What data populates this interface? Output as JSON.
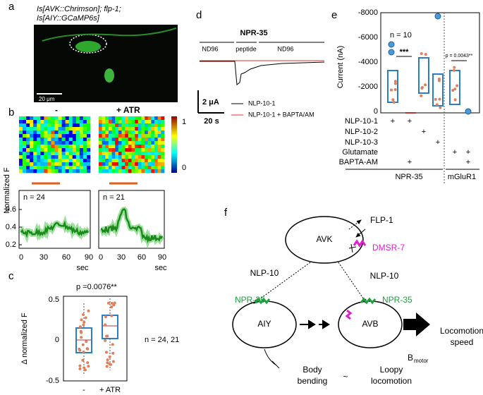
{
  "panel_a": {
    "label": "a",
    "genotype_1": "Is[AVK::Chrimson]; flp-1;",
    "genotype_2": "Is[AIY::GCaMP6s]",
    "scale_bar": "20 μm"
  },
  "panel_b": {
    "label": "b",
    "condition_1": "-",
    "condition_2": "+ ATR",
    "colorbar_ticks": [
      "1",
      "0"
    ],
    "y_label": "Normalized F",
    "n_1": "n = 24",
    "n_2": "n = 21",
    "yticks": [
      "0.6",
      "0.4",
      "0.2"
    ],
    "xticks": [
      "0",
      "30",
      "60",
      "90"
    ],
    "x_label": "sec"
  },
  "panel_c": {
    "label": "c",
    "p_value": "p =0.0076**",
    "yticks": [
      "0.5",
      "0",
      "-0.5"
    ],
    "y_label": "Δ normalized F",
    "categories": [
      "-",
      "+ ATR"
    ],
    "n": "n = 24, 21"
  },
  "panel_d": {
    "label": "d",
    "title": "NPR-35",
    "bath": [
      "ND96",
      "peptide",
      "ND96"
    ],
    "scale_y": "2 μA",
    "scale_x": "20 s",
    "legend": [
      "NLP-10-1",
      "NLP-10-1 + BAPTA/AM"
    ]
  },
  "panel_e": {
    "label": "e",
    "y_label": "Current (nA)",
    "yticks": [
      "-8000",
      "-6000",
      "-4000",
      "-2000",
      "0"
    ],
    "n": "n = 10",
    "stars": "***",
    "p_value": "p = 0.0043**",
    "rows": [
      "NLP-10-1",
      "NLP-10-2",
      "NLP-10-3",
      "Glutamate",
      "BAPTA-AM"
    ],
    "plus": "+",
    "groups": [
      "NPR-35",
      "mGluR1"
    ]
  },
  "panel_f": {
    "label": "f",
    "avk": "AVK",
    "aiy": "AIY",
    "avb": "AVB",
    "flp": "FLP-1",
    "dmsr": "DMSR-7",
    "nlp_left": "NLP-10",
    "nlp_right": "NLP-10",
    "npr_left": "NPR-35",
    "npr_right": "NPR-35",
    "locomotion": [
      "Locomotion",
      "speed"
    ],
    "b": "B",
    "b_sub": "motor",
    "body": [
      "Body",
      "bending"
    ],
    "tilde": "~",
    "loopy": [
      "Loopy",
      "locomotion"
    ]
  }
}
